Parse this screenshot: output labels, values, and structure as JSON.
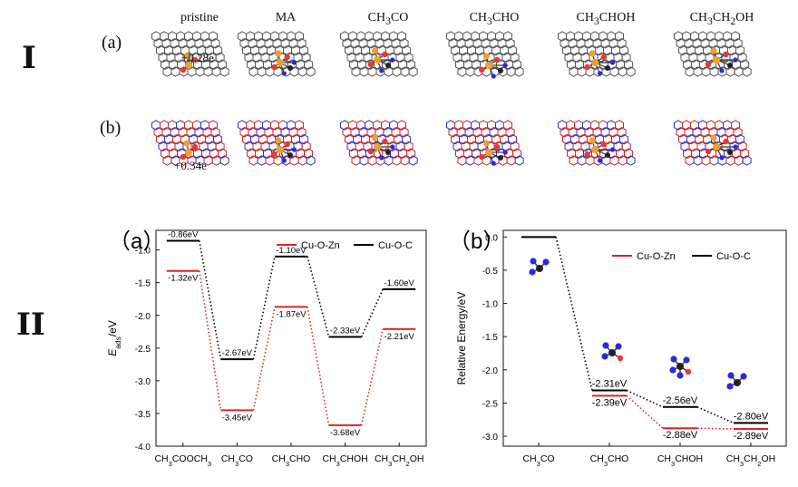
{
  "section_labels": {
    "top": "I",
    "bottom": "II"
  },
  "top": {
    "row_a_label": "(a)",
    "row_b_label": "(b)",
    "columns": [
      "pristine",
      "MA",
      "CH3CO",
      "CH3CHO",
      "CH3CHOH",
      "CH3CH2OH"
    ],
    "charge_a": "+0.28e",
    "charge_b": "+0.34e",
    "colors": {
      "sheet_a": "#555555",
      "sheet_b_red": "#c0272d",
      "sheet_b_blue": "#2233cc",
      "copper": "#f0a030",
      "oxygen": "#e53a3a",
      "carbon": "#222222",
      "hydrogen": "#2b2bd6"
    }
  },
  "chart_data": [
    {
      "type": "line",
      "panel_label": "（a）",
      "ylabel": "E_ads/eV",
      "ylim": [
        -4.0,
        -0.7
      ],
      "y_ticks": [
        -1.0,
        -1.5,
        -2.0,
        -2.5,
        -3.0,
        -3.5,
        -4.0
      ],
      "categories": [
        "CH3COOCH3",
        "CH3CO",
        "CH3CHO",
        "CH3CHOH",
        "CH3CH2OH"
      ],
      "legend_position": "top-right",
      "series": [
        {
          "name": "Cu-O-Zn",
          "color": "#d62728",
          "values": [
            -1.32,
            -3.45,
            -1.87,
            -3.68,
            -2.21
          ],
          "labels": [
            "-1.32eV",
            "-3.45eV",
            "-1.87eV",
            "-3.68eV",
            "-2.21eV"
          ]
        },
        {
          "name": "Cu-O-C",
          "color": "#000000",
          "values": [
            -0.86,
            -2.67,
            -1.1,
            -2.33,
            -1.6
          ],
          "labels": [
            "-0.86eV",
            "-2.67eV",
            "-1.10eV",
            "-2.33eV",
            "-1.60eV"
          ]
        }
      ]
    },
    {
      "type": "line",
      "panel_label": "（b）",
      "ylabel": "Relative Energy/eV",
      "ylim": [
        -3.15,
        0.1
      ],
      "y_ticks": [
        0.0,
        -0.5,
        -1.0,
        -1.5,
        -2.0,
        -2.5,
        -3.0
      ],
      "categories": [
        "CH3CO",
        "CH3CHO",
        "CH3CHOH",
        "CH3CH2OH"
      ],
      "legend_position": "top-right",
      "series": [
        {
          "name": "Cu-O-Zn",
          "color": "#d62728",
          "values": [
            null,
            -2.39,
            -2.88,
            -2.89
          ],
          "labels": [
            "",
            "-2.39eV",
            "-2.88eV",
            "-2.89eV"
          ]
        },
        {
          "name": "Cu-O-C",
          "color": "#000000",
          "values": [
            0.0,
            -2.31,
            -2.56,
            -2.8
          ],
          "labels": [
            "",
            "-2.31eV",
            "-2.56eV",
            "-2.80eV"
          ]
        }
      ]
    }
  ]
}
